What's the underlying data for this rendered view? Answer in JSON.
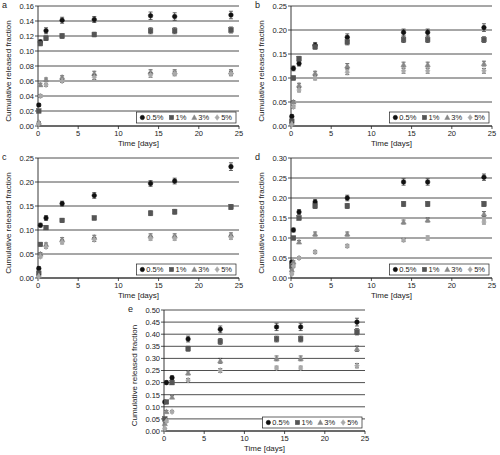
{
  "chart_data": [
    {
      "type": "scatter",
      "title": "a",
      "x_label": "Time [days]",
      "y_label": "Cumulative released fraction",
      "x": [
        0.1,
        0.3,
        1,
        3,
        7,
        14,
        17,
        24
      ],
      "xlim": [
        0,
        25
      ],
      "xticks": [
        0,
        5,
        10,
        15,
        20,
        25
      ],
      "ylim": [
        0,
        0.16
      ],
      "yticks": [
        {
          "value": 0,
          "label": "0.00"
        },
        {
          "value": 0.02,
          "label": "0.02"
        },
        {
          "value": 0.04,
          "label": "0.04"
        },
        {
          "value": 0.06,
          "label": "0.06"
        },
        {
          "value": 0.08,
          "label": "0.08"
        },
        {
          "value": 0.1,
          "label": "0.10"
        },
        {
          "value": 0.12,
          "label": "0.12"
        },
        {
          "value": 0.14,
          "label": "0.14"
        },
        {
          "value": 0.16,
          "label": "0.16"
        }
      ],
      "grid": true,
      "legend": "bottom-right",
      "series": [
        {
          "name": "0.5%",
          "color": "#111111",
          "marker": "circle",
          "values": [
            0.028,
            0.112,
            0.127,
            0.141,
            0.142,
            0.147,
            0.146,
            0.148
          ],
          "errors": [
            0.002,
            0.003,
            0.004,
            0.004,
            0.004,
            0.005,
            0.005,
            0.005
          ]
        },
        {
          "name": "1%",
          "color": "#555555",
          "marker": "square",
          "values": [
            0.02,
            0.11,
            0.117,
            0.12,
            0.122,
            0.127,
            0.127,
            0.128
          ],
          "errors": [
            0.002,
            0.003,
            0.003,
            0.003,
            0.003,
            0.004,
            0.004,
            0.004
          ]
        },
        {
          "name": "3%",
          "color": "#888888",
          "marker": "triangle",
          "values": [
            0.005,
            0.055,
            0.062,
            0.065,
            0.07,
            0.072,
            0.072,
            0.072
          ],
          "errors": [
            0.001,
            0.002,
            0.002,
            0.002,
            0.003,
            0.003,
            0.003,
            0.003
          ]
        },
        {
          "name": "5%",
          "color": "#aaaaaa",
          "marker": "diamond",
          "values": [
            0.003,
            0.04,
            0.055,
            0.06,
            0.065,
            0.068,
            0.07,
            0.07
          ],
          "errors": [
            0.001,
            0.002,
            0.002,
            0.002,
            0.003,
            0.003,
            0.003,
            0.003
          ]
        }
      ]
    },
    {
      "type": "scatter",
      "title": "b",
      "x_label": "Time [days]",
      "y_label": "Cumulative released fraction",
      "x": [
        0.1,
        0.3,
        1,
        3,
        7,
        14,
        17,
        24
      ],
      "xlim": [
        0,
        25
      ],
      "xticks": [
        0,
        5,
        10,
        15,
        20,
        25
      ],
      "ylim": [
        0,
        0.25
      ],
      "yticks": [
        {
          "value": 0,
          "label": "0.00"
        },
        {
          "value": 0.05,
          "label": "0.05"
        },
        {
          "value": 0.1,
          "label": "0.10"
        },
        {
          "value": 0.15,
          "label": "0.15"
        },
        {
          "value": 0.2,
          "label": "0.20"
        },
        {
          "value": 0.25,
          "label": "0.25"
        }
      ],
      "grid": true,
      "legend": "bottom-right",
      "series": [
        {
          "name": "0.5%",
          "color": "#111111",
          "marker": "circle",
          "values": [
            0.02,
            0.12,
            0.13,
            0.168,
            0.185,
            0.195,
            0.195,
            0.205
          ],
          "errors": [
            0.003,
            0.005,
            0.005,
            0.006,
            0.007,
            0.007,
            0.007,
            0.008
          ]
        },
        {
          "name": "1%",
          "color": "#555555",
          "marker": "square",
          "values": [
            0.01,
            0.1,
            0.14,
            0.165,
            0.175,
            0.18,
            0.18,
            0.18
          ],
          "errors": [
            0.002,
            0.004,
            0.005,
            0.005,
            0.006,
            0.006,
            0.006,
            0.006
          ]
        },
        {
          "name": "3%",
          "color": "#888888",
          "marker": "triangle",
          "values": [
            0.005,
            0.05,
            0.085,
            0.11,
            0.125,
            0.128,
            0.128,
            0.13
          ],
          "errors": [
            0.002,
            0.003,
            0.004,
            0.004,
            0.005,
            0.005,
            0.005,
            0.005
          ]
        },
        {
          "name": "5%",
          "color": "#aaaaaa",
          "marker": "diamond",
          "values": [
            0.003,
            0.04,
            0.075,
            0.1,
            0.112,
            0.115,
            0.115,
            0.115
          ],
          "errors": [
            0.002,
            0.003,
            0.004,
            0.004,
            0.005,
            0.005,
            0.005,
            0.005
          ]
        }
      ]
    },
    {
      "type": "scatter",
      "title": "c",
      "x_label": "Time [days]",
      "y_label": "Cumulative released fraction",
      "x": [
        0.1,
        0.3,
        1,
        3,
        7,
        14,
        17,
        24
      ],
      "xlim": [
        0,
        25
      ],
      "xticks": [
        0,
        5,
        10,
        15,
        20,
        25
      ],
      "ylim": [
        0,
        0.25
      ],
      "yticks": [
        {
          "value": 0,
          "label": "0.00"
        },
        {
          "value": 0.05,
          "label": "0.05"
        },
        {
          "value": 0.1,
          "label": "0.10"
        },
        {
          "value": 0.15,
          "label": "0.15"
        },
        {
          "value": 0.2,
          "label": "0.20"
        },
        {
          "value": 0.25,
          "label": "0.25"
        }
      ],
      "grid": true,
      "legend": "bottom-right",
      "series": [
        {
          "name": "0.5%",
          "color": "#111111",
          "marker": "circle",
          "values": [
            0.02,
            0.11,
            0.125,
            0.155,
            0.172,
            0.197,
            0.202,
            0.232
          ],
          "errors": [
            0.003,
            0.004,
            0.005,
            0.005,
            0.006,
            0.006,
            0.006,
            0.008
          ]
        },
        {
          "name": "1%",
          "color": "#555555",
          "marker": "square",
          "values": [
            0.01,
            0.07,
            0.105,
            0.12,
            0.125,
            0.135,
            0.138,
            0.148
          ],
          "errors": [
            0.002,
            0.003,
            0.004,
            0.004,
            0.004,
            0.005,
            0.005,
            0.005
          ]
        },
        {
          "name": "3%",
          "color": "#888888",
          "marker": "triangle",
          "values": [
            0.005,
            0.05,
            0.07,
            0.08,
            0.085,
            0.088,
            0.088,
            0.09
          ],
          "errors": [
            0.002,
            0.003,
            0.003,
            0.004,
            0.004,
            0.004,
            0.004,
            0.004
          ]
        },
        {
          "name": "5%",
          "color": "#aaaaaa",
          "marker": "diamond",
          "values": [
            0.003,
            0.045,
            0.065,
            0.075,
            0.08,
            0.083,
            0.083,
            0.085
          ],
          "errors": [
            0.002,
            0.003,
            0.003,
            0.004,
            0.004,
            0.004,
            0.004,
            0.004
          ]
        }
      ]
    },
    {
      "type": "scatter",
      "title": "d",
      "x_label": "Time [days]",
      "y_label": "Cumulative released fraction",
      "x": [
        0.1,
        0.3,
        1,
        3,
        7,
        14,
        17,
        24
      ],
      "xlim": [
        0,
        25
      ],
      "xticks": [
        0,
        5,
        10,
        15,
        20,
        25
      ],
      "ylim": [
        0,
        0.3
      ],
      "yticks": [
        {
          "value": 0,
          "label": "0.00"
        },
        {
          "value": 0.05,
          "label": "0.05"
        },
        {
          "value": 0.1,
          "label": "0.10"
        },
        {
          "value": 0.15,
          "label": "0.15"
        },
        {
          "value": 0.2,
          "label": "0.20"
        },
        {
          "value": 0.25,
          "label": "0.25"
        },
        {
          "value": 0.3,
          "label": "0.30"
        }
      ],
      "grid": true,
      "legend": "bottom-right",
      "series": [
        {
          "name": "0.5%",
          "color": "#111111",
          "marker": "circle",
          "values": [
            0.04,
            0.12,
            0.165,
            0.19,
            0.2,
            0.24,
            0.24,
            0.252
          ],
          "errors": [
            0.003,
            0.005,
            0.006,
            0.006,
            0.007,
            0.008,
            0.008,
            0.008
          ]
        },
        {
          "name": "1%",
          "color": "#555555",
          "marker": "square",
          "values": [
            0.03,
            0.1,
            0.15,
            0.18,
            0.18,
            0.185,
            0.185,
            0.185
          ],
          "errors": [
            0.003,
            0.004,
            0.005,
            0.006,
            0.006,
            0.006,
            0.006,
            0.006
          ]
        },
        {
          "name": "3%",
          "color": "#888888",
          "marker": "triangle",
          "values": [
            0.02,
            0.04,
            0.09,
            0.11,
            0.11,
            0.14,
            0.145,
            0.16
          ],
          "errors": [
            0.002,
            0.003,
            0.004,
            0.005,
            0.005,
            0.005,
            0.005,
            0.006
          ]
        },
        {
          "name": "5%",
          "color": "#aaaaaa",
          "marker": "diamond",
          "values": [
            0.01,
            0.03,
            0.05,
            0.065,
            0.08,
            0.095,
            0.1,
            0.14
          ],
          "errors": [
            0.002,
            0.003,
            0.003,
            0.004,
            0.004,
            0.004,
            0.005,
            0.005
          ]
        }
      ]
    },
    {
      "type": "scatter",
      "title": "e",
      "x_label": "Time [days]",
      "y_label": "Cumulative released fraction",
      "x": [
        0.1,
        0.3,
        1,
        3,
        7,
        14,
        17,
        24
      ],
      "xlim": [
        0,
        25
      ],
      "xticks": [
        0,
        5,
        10,
        15,
        20,
        25
      ],
      "ylim": [
        0,
        0.5
      ],
      "yticks": [
        {
          "value": 0,
          "label": "0.00"
        },
        {
          "value": 0.05,
          "label": "0.05"
        },
        {
          "value": 0.1,
          "label": "0.10"
        },
        {
          "value": 0.15,
          "label": "0.15"
        },
        {
          "value": 0.2,
          "label": "0.20"
        },
        {
          "value": 0.25,
          "label": "0.25"
        },
        {
          "value": 0.3,
          "label": "0.30"
        },
        {
          "value": 0.35,
          "label": "0.35"
        },
        {
          "value": 0.4,
          "label": "0.40"
        },
        {
          "value": 0.45,
          "label": "0.45"
        },
        {
          "value": 0.5,
          "label": "0.50"
        }
      ],
      "grid": true,
      "legend": "bottom-right",
      "series": [
        {
          "name": "0.5%",
          "color": "#111111",
          "marker": "circle",
          "values": [
            0.12,
            0.2,
            0.22,
            0.38,
            0.42,
            0.43,
            0.43,
            0.45
          ],
          "errors": [
            0.005,
            0.008,
            0.008,
            0.012,
            0.014,
            0.015,
            0.015,
            0.016
          ]
        },
        {
          "name": "1%",
          "color": "#555555",
          "marker": "square",
          "values": [
            0.05,
            0.12,
            0.2,
            0.34,
            0.37,
            0.38,
            0.38,
            0.41
          ],
          "errors": [
            0.004,
            0.006,
            0.008,
            0.01,
            0.012,
            0.012,
            0.012,
            0.013
          ]
        },
        {
          "name": "3%",
          "color": "#888888",
          "marker": "triangle",
          "values": [
            0.03,
            0.08,
            0.14,
            0.24,
            0.29,
            0.3,
            0.3,
            0.34
          ],
          "errors": [
            0.003,
            0.005,
            0.006,
            0.008,
            0.01,
            0.01,
            0.01,
            0.011
          ]
        },
        {
          "name": "5%",
          "color": "#aaaaaa",
          "marker": "diamond",
          "values": [
            0.01,
            0.04,
            0.08,
            0.21,
            0.25,
            0.26,
            0.26,
            0.27
          ],
          "errors": [
            0.002,
            0.004,
            0.005,
            0.007,
            0.008,
            0.008,
            0.008,
            0.009
          ]
        }
      ]
    }
  ]
}
